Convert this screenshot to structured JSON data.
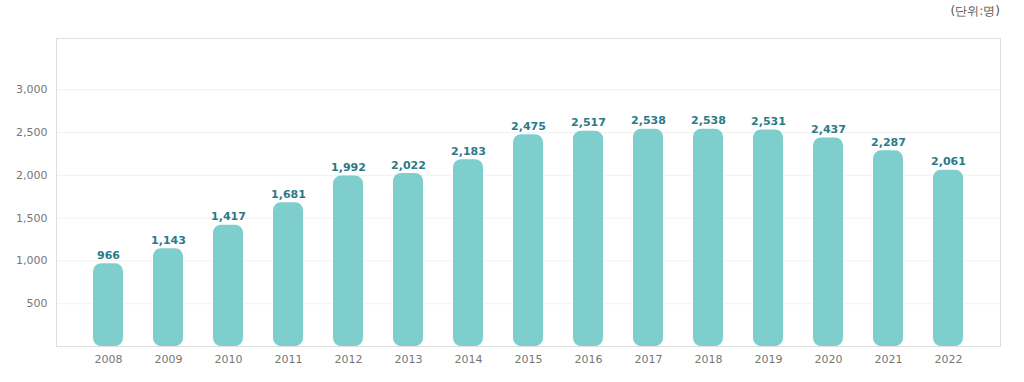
{
  "chart_data": {
    "type": "bar",
    "categories": [
      "2008",
      "2009",
      "2010",
      "2011",
      "2012",
      "2013",
      "2014",
      "2015",
      "2016",
      "2017",
      "2018",
      "2019",
      "2020",
      "2021",
      "2022"
    ],
    "values": [
      966,
      1143,
      1417,
      1681,
      1992,
      2022,
      2183,
      2475,
      2517,
      2538,
      2538,
      2531,
      2437,
      2287,
      2061
    ],
    "value_labels": [
      "966",
      "1,143",
      "1,417",
      "1,681",
      "1,992",
      "2,022",
      "2,183",
      "2,475",
      "2,517",
      "2,538",
      "2,538",
      "2,531",
      "2,437",
      "2,287",
      "2,061"
    ],
    "data_labels": true,
    "color": "#7ecece",
    "ylim": [
      0,
      3600
    ],
    "yticks": [
      500,
      {
        "value": 1000,
        "label": "1,000"
      },
      {
        "value": 1500,
        "label": "1,500"
      },
      {
        "value": 2000,
        "label": "2,000"
      },
      {
        "value": 2500,
        "label": "2,500"
      },
      {
        "value": 3000,
        "label": "3,000"
      }
    ],
    "grid": true,
    "annotations": [
      "(단위:명)"
    ]
  }
}
